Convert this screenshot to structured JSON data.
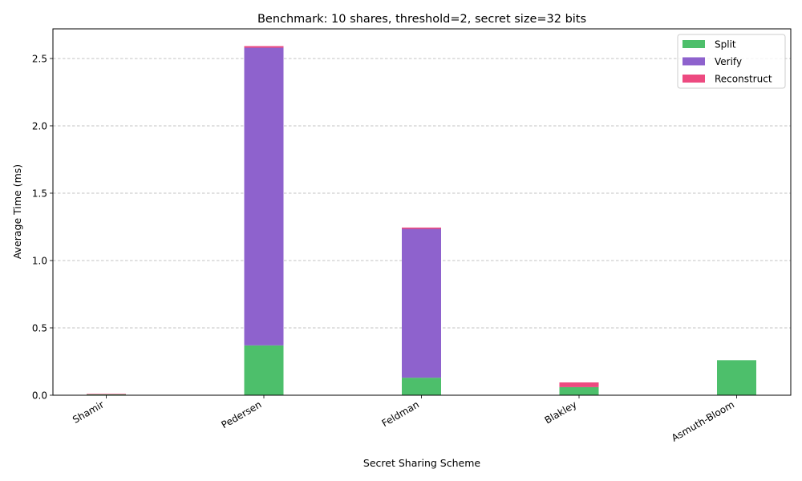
{
  "chart_data": {
    "type": "bar",
    "stacked": true,
    "title": "Benchmark: 10 shares, threshold=2, secret size=32 bits",
    "xlabel": "Secret Sharing Scheme",
    "ylabel": "Average Time (ms)",
    "categories": [
      "Shamir",
      "Pedersen",
      "Feldman",
      "Blakley",
      "Asmuth-Bloom"
    ],
    "series": [
      {
        "name": "Split",
        "color": "#4dbf6b",
        "values": [
          0.006,
          0.37,
          0.13,
          0.06,
          0.26
        ]
      },
      {
        "name": "Verify",
        "color": "#8e62cd",
        "values": [
          0.0,
          2.21,
          1.105,
          0.0,
          0.0
        ]
      },
      {
        "name": "Reconstruct",
        "color": "#ed4a80",
        "values": [
          0.004,
          0.012,
          0.01,
          0.035,
          0.0
        ]
      }
    ],
    "ylim": [
      0,
      2.72
    ],
    "yticks": [
      "0.0",
      "0.5",
      "1.0",
      "1.5",
      "2.0",
      "2.5"
    ],
    "grid": "y-dashed",
    "legend": "top-right"
  }
}
